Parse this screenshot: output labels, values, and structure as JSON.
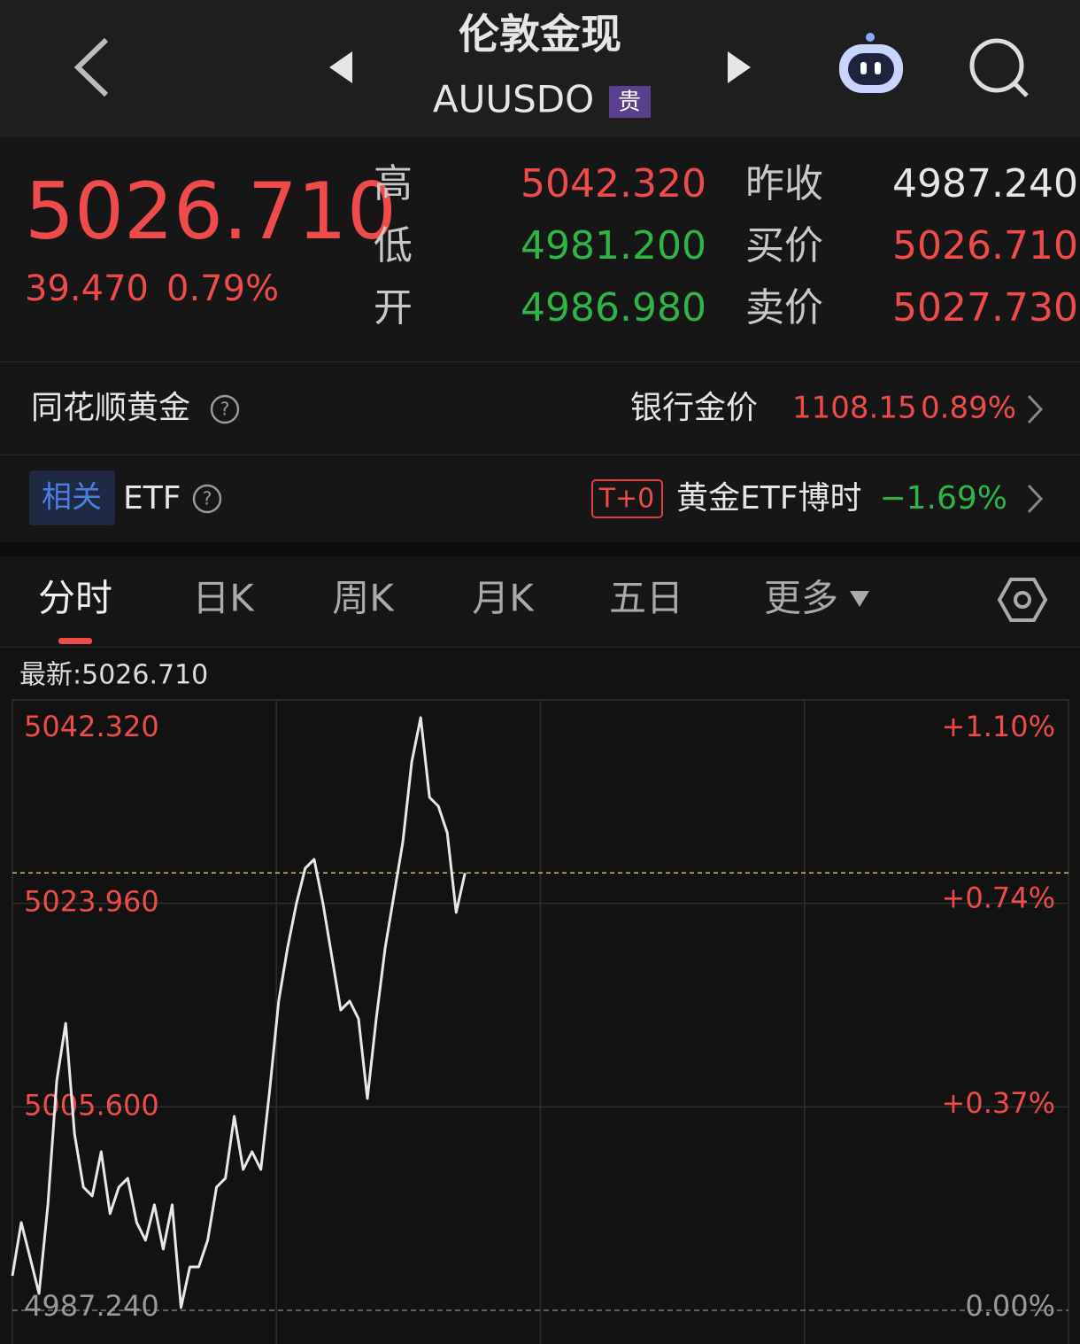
{
  "header": {
    "title": "伦敦金现",
    "code": "AUUSDO",
    "badge": "贵"
  },
  "quote": {
    "price": "5026.710",
    "change": "39.470",
    "change_pct": "0.79%",
    "left_stats": [
      {
        "label": "高",
        "value": "5042.320"
      },
      {
        "label": "低",
        "value": "4981.200"
      },
      {
        "label": "开",
        "value": "4986.980"
      }
    ],
    "right_stats": [
      {
        "label": "昨收",
        "value": "4987.240"
      },
      {
        "label": "买价",
        "value": "5026.710"
      },
      {
        "label": "卖价",
        "value": "5027.730"
      }
    ]
  },
  "bank_row": {
    "title": "同花顺黄金",
    "label": "银行金价",
    "price": "1108.15",
    "pct": "0.89%"
  },
  "etf_row": {
    "badge": "相关",
    "title": "ETF",
    "tag": "T+0",
    "name": "黄金ETF博时",
    "pct": "−1.69%"
  },
  "tabs": [
    "分时",
    "日K",
    "周K",
    "月K",
    "五日",
    "更多"
  ],
  "chart_data": {
    "type": "line",
    "annotation": "最新:5026.710",
    "color": "#e8e8e8",
    "x": [
      0,
      1,
      2,
      3,
      4,
      5,
      6,
      7,
      8,
      9,
      10,
      11,
      12,
      13,
      14,
      15,
      16,
      17,
      18,
      19,
      20,
      21,
      22,
      23,
      24,
      25,
      26,
      27,
      28,
      29,
      30,
      31,
      32,
      33,
      34,
      35,
      36,
      37,
      38,
      39,
      40,
      41,
      42,
      43,
      44,
      45,
      46,
      47,
      48,
      49,
      50,
      51
    ],
    "values": [
      4990.36,
      4995.16,
      4991.96,
      4988.76,
      4996.76,
      5007.95,
      5013.14,
      5003.15,
      4998.36,
      4997.56,
      5001.55,
      4995.96,
      4998.36,
      4999.15,
      4995.16,
      4993.56,
      4996.76,
      4992.76,
      4996.76,
      4987.5,
      4991.16,
      4991.16,
      4993.56,
      4998.36,
      4999.15,
      5004.75,
      4999.95,
      5001.55,
      4999.95,
      5007.15,
      5015.14,
      5019.94,
      5023.93,
      5027.13,
      5027.93,
      5023.93,
      5019.14,
      5014.34,
      5015.14,
      5013.54,
      5006.35,
      5013.54,
      5019.94,
      5024.73,
      5029.53,
      5036.72,
      5040.72,
      5033.53,
      5032.73,
      5030.33,
      5023.14,
      5026.71
    ],
    "current": 5026.71,
    "xlim": [
      0,
      119
    ],
    "ylim": [
      4987.24,
      5042.32
    ],
    "yticks": [
      {
        "value": 5042.32,
        "label": "5042.320"
      },
      {
        "value": 5023.96,
        "label": "5023.960"
      },
      {
        "value": 5005.6,
        "label": "5005.600"
      },
      {
        "value": 4987.24,
        "label": "4987.240"
      }
    ],
    "y2lim": [
      0,
      1.1
    ],
    "y2ticks": [
      {
        "value": 1.1,
        "label": "+1.10%"
      },
      {
        "value": 0.74,
        "label": "+0.74%"
      },
      {
        "value": 0.37,
        "label": "+0.37%"
      },
      {
        "value": 0,
        "label": "0.00%"
      }
    ]
  }
}
